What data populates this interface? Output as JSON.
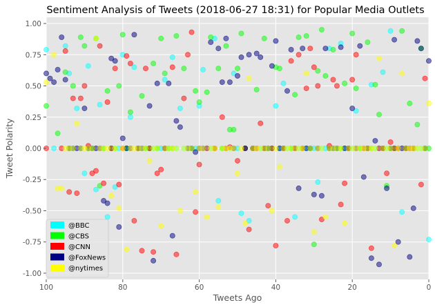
{
  "chart_data": {
    "type": "scatter",
    "title": "Sentiment Analysis of Tweets (2018-06-27 18:31) for Popular Media Outlets",
    "xlabel": "Tweets Ago",
    "ylabel": "Tweet Polarity",
    "xlim": [
      100,
      0
    ],
    "ylim": [
      -1.05,
      1.05
    ],
    "x_ticks": [
      100,
      80,
      60,
      40,
      20,
      0
    ],
    "y_ticks": [
      1.0,
      0.75,
      0.5,
      0.25,
      0.0,
      -0.25,
      -0.5,
      -0.75,
      -1.0
    ],
    "grid": true,
    "legend_position": "lower-left",
    "series": [
      {
        "name": "@BBC",
        "color": "#00ffff",
        "x": [
          100,
          98,
          95,
          94,
          93,
          92,
          91,
          90,
          89,
          88,
          87,
          86,
          85,
          84,
          83,
          82,
          81,
          80,
          79,
          78,
          77,
          76,
          75,
          74,
          73,
          72,
          71,
          70,
          69,
          68,
          67,
          66,
          65,
          64,
          63,
          62,
          61,
          60,
          59,
          58,
          57,
          56,
          55,
          54,
          53,
          52,
          51,
          50,
          49,
          48,
          47,
          46,
          45,
          44,
          43,
          42,
          41,
          40,
          39,
          38,
          37,
          36,
          35,
          34,
          33,
          32,
          31,
          30,
          29,
          28,
          27,
          26,
          25,
          24,
          23,
          22,
          21,
          20,
          19,
          18,
          17,
          16,
          15,
          14,
          13,
          12,
          11,
          10,
          9,
          8,
          7,
          6,
          5,
          4,
          3,
          2,
          1,
          0
        ],
        "y": [
          0.79,
          0.0,
          0.82,
          0.6,
          0.0,
          0.32,
          0.0,
          -0.2,
          0.66,
          0.0,
          -0.33,
          0.35,
          0.0,
          -0.55,
          0.0,
          -0.31,
          0.0,
          0.75,
          0.0,
          0.25,
          0.65,
          0.0,
          0.0,
          0.0,
          0.0,
          0.0,
          0.0,
          0.0,
          0.55,
          0.0,
          0.73,
          0.0,
          0.32,
          0.0,
          0.0,
          0.0,
          0.0,
          0.34,
          0.63,
          0.0,
          0.0,
          0.88,
          -0.42,
          0.0,
          0.0,
          0.0,
          0.6,
          0.0,
          -0.52,
          0.0,
          -0.58,
          0.0,
          0.0,
          0.0,
          0.0,
          0.0,
          0.0,
          0.34,
          0.0,
          0.52,
          0.0,
          0.0,
          -0.55,
          0.0,
          0.0,
          0.0,
          0.0,
          0.0,
          -0.27,
          0.0,
          0.0,
          0.8,
          0.0,
          0.0,
          0.84,
          0.0,
          0.0,
          0.0,
          0.3,
          0.0,
          0.0,
          0.0,
          0.51,
          0.0,
          0.0,
          0.61,
          0.0,
          0.94,
          0.0,
          0.0,
          -0.51,
          0.0,
          0.0,
          0.0,
          0.0,
          0.0,
          0.0,
          -0.73
        ]
      },
      {
        "name": "@CBS",
        "color": "#00ff00",
        "x": [
          100,
          97,
          95,
          94,
          93,
          91,
          90,
          89,
          88,
          87,
          86,
          85,
          84,
          83,
          82,
          81,
          80,
          79,
          78,
          76,
          75,
          74,
          73,
          72,
          71,
          70,
          69,
          68,
          67,
          66,
          64,
          62,
          61,
          60,
          58,
          57,
          56,
          55,
          54,
          53,
          52,
          51,
          50,
          49,
          48,
          46,
          45,
          43,
          42,
          41,
          40,
          39,
          38,
          36,
          35,
          34,
          33,
          32,
          31,
          30,
          29,
          28,
          27,
          26,
          25,
          24,
          23,
          22,
          21,
          20,
          19,
          18,
          16,
          15,
          14,
          13,
          12,
          11,
          10,
          9,
          7,
          6,
          5,
          4,
          3,
          2,
          1,
          0
        ],
        "y": [
          0.34,
          0.12,
          0.61,
          0.0,
          0.5,
          0.89,
          0.82,
          0.0,
          0.0,
          0.88,
          -0.3,
          0.0,
          0.46,
          0.0,
          0.0,
          0.5,
          0.91,
          0.0,
          0.29,
          0.0,
          0.42,
          0.0,
          0.0,
          0.68,
          0.0,
          0.88,
          0.6,
          0.0,
          0.0,
          0.9,
          0.64,
          0.0,
          0.46,
          0.37,
          0.45,
          0.89,
          0.0,
          0.64,
          0.0,
          0.82,
          0.15,
          0.15,
          0.64,
          0.92,
          0.0,
          0.0,
          0.47,
          0.88,
          0.0,
          0.0,
          0.65,
          0.64,
          0.0,
          0.0,
          0.43,
          0.89,
          0.0,
          0.9,
          0.0,
          -0.77,
          0.62,
          0.95,
          0.58,
          0.0,
          0.79,
          0.0,
          0.0,
          0.52,
          0.0,
          0.92,
          0.48,
          0.0,
          0.85,
          0.0,
          0.51,
          0.27,
          0.0,
          -0.3,
          0.0,
          0.0,
          0.94,
          0.0,
          0.36,
          0.0,
          0.19,
          0.8,
          0.0,
          0.0
        ]
      },
      {
        "name": "@CNN",
        "color": "#ff0000",
        "x": [
          100,
          96,
          95,
          94,
          93,
          92,
          91,
          90,
          89,
          88,
          87,
          86,
          85,
          84,
          83,
          82,
          81,
          80,
          79,
          78,
          77,
          76,
          75,
          74,
          73,
          72,
          71,
          70,
          69,
          67,
          66,
          64,
          63,
          62,
          61,
          60,
          58,
          56,
          54,
          53,
          52,
          50,
          48,
          47,
          46,
          45,
          44,
          43,
          42,
          41,
          40,
          38,
          37,
          36,
          35,
          34,
          33,
          32,
          31,
          30,
          29,
          28,
          26,
          25,
          24,
          23,
          22,
          21,
          20,
          19,
          17,
          16,
          15,
          13,
          12,
          11,
          10,
          9,
          8,
          6,
          5,
          4,
          2,
          1
        ],
        "y": [
          0.0,
          0.0,
          0.78,
          -0.35,
          0.4,
          -0.36,
          0.4,
          0.5,
          0.02,
          -0.2,
          -0.18,
          0.82,
          -0.28,
          0.37,
          0.0,
          0.64,
          -0.29,
          0.0,
          0.74,
          0.68,
          -0.58,
          0.0,
          -0.82,
          0.64,
          0.0,
          -0.83,
          -0.2,
          -0.17,
          0.0,
          0.65,
          -0.85,
          0.4,
          0.75,
          0.93,
          -0.51,
          -0.13,
          0.0,
          0.0,
          0.25,
          0.0,
          0.01,
          -0.1,
          0.0,
          -0.65,
          0.0,
          0.0,
          0.2,
          0.0,
          -0.46,
          0.0,
          -0.78,
          0.0,
          -0.58,
          0.7,
          0.0,
          0.75,
          0.0,
          0.48,
          0.8,
          0.65,
          0.5,
          -0.57,
          0.02,
          0.55,
          0.5,
          -0.45,
          -0.28,
          0.0,
          0.55,
          0.75,
          0.0,
          0.0,
          -0.8,
          0.0,
          0.0,
          -0.2,
          0.05,
          0.0,
          0.0,
          0.0,
          0.0,
          0.0,
          -0.29,
          0.56
        ]
      },
      {
        "name": "@FoxNews",
        "color": "#000080",
        "x": [
          100,
          99,
          98,
          97,
          96,
          95,
          94,
          93,
          92,
          91,
          90,
          89,
          88,
          87,
          86,
          85,
          84,
          83,
          82,
          81,
          80,
          79,
          78,
          77,
          76,
          75,
          73,
          72,
          71,
          69,
          68,
          67,
          66,
          65,
          63,
          62,
          61,
          60,
          59,
          57,
          55,
          54,
          53,
          52,
          51,
          50,
          49,
          48,
          47,
          46,
          45,
          44,
          43,
          42,
          41,
          40,
          39,
          38,
          37,
          36,
          35,
          34,
          33,
          32,
          31,
          30,
          29,
          28,
          27,
          26,
          25,
          24,
          23,
          22,
          21,
          20,
          19,
          18,
          17,
          16,
          15,
          14,
          13,
          12,
          11,
          10,
          9,
          8,
          7,
          6,
          5,
          4,
          3,
          2,
          1,
          0
        ],
        "y": [
          0.6,
          0.56,
          0.53,
          0.63,
          0.89,
          0.55,
          0.0,
          0.0,
          0.0,
          0.0,
          0.32,
          0.0,
          0.0,
          0.0,
          0.0,
          -0.42,
          -0.44,
          0.72,
          0.7,
          -0.63,
          0.08,
          0.0,
          0.0,
          0.91,
          0.0,
          0.0,
          0.34,
          -0.9,
          0.52,
          0.0,
          0.52,
          -0.7,
          0.22,
          0.17,
          0.0,
          0.0,
          -0.03,
          0.0,
          0.0,
          0.85,
          0.8,
          0.53,
          0.88,
          0.53,
          0.0,
          0.58,
          0.73,
          0.0,
          0.75,
          0.0,
          0.76,
          0.73,
          0.0,
          0.0,
          0.66,
          0.86,
          0.0,
          0.0,
          0.46,
          0.79,
          0.0,
          -0.32,
          0.8,
          0.0,
          0.0,
          -0.37,
          0.0,
          -0.38,
          0.8,
          0.0,
          0.0,
          0.0,
          0.81,
          0.0,
          0.0,
          0.32,
          0.0,
          0.82,
          -0.23,
          0.0,
          -0.88,
          0.06,
          -0.93,
          0.0,
          -0.32,
          0.0,
          0.87,
          -0.75,
          0.0,
          0.0,
          -0.87,
          -0.48,
          0.86,
          0.8,
          0.0,
          0.7
        ]
      },
      {
        "name": "@nytimes",
        "color": "#ffff00",
        "x": [
          100,
          98,
          97,
          96,
          95,
          94,
          93,
          92,
          91,
          90,
          89,
          88,
          87,
          86,
          85,
          84,
          83,
          82,
          81,
          80,
          79,
          78,
          77,
          76,
          75,
          74,
          73,
          72,
          71,
          70,
          69,
          68,
          67,
          66,
          65,
          64,
          63,
          62,
          61,
          60,
          59,
          58,
          57,
          56,
          55,
          54,
          53,
          52,
          51,
          50,
          49,
          48,
          47,
          46,
          45,
          44,
          43,
          42,
          41,
          40,
          39,
          38,
          37,
          36,
          35,
          34,
          33,
          32,
          31,
          30,
          29,
          28,
          27,
          26,
          25,
          24,
          23,
          22,
          21,
          20,
          19,
          18,
          17,
          16,
          15,
          14,
          13,
          12,
          11,
          10,
          9,
          8,
          7,
          6,
          5,
          4,
          3,
          2,
          1,
          0
        ],
        "y": [
          0.53,
          0.75,
          -0.32,
          -0.32,
          0.0,
          0.0,
          0.0,
          0.2,
          0.0,
          0.0,
          0.0,
          0.0,
          0.88,
          0.0,
          0.0,
          0.0,
          -0.38,
          0.0,
          -0.48,
          0.0,
          -0.81,
          0.0,
          0.0,
          0.0,
          0.0,
          0.0,
          -0.1,
          0.0,
          0.0,
          -0.62,
          0.0,
          0.0,
          0.0,
          0.0,
          -0.5,
          0.0,
          0.0,
          0.0,
          -0.35,
          0.0,
          0.0,
          -0.55,
          0.0,
          0.0,
          -0.47,
          0.0,
          0.0,
          0.0,
          0.0,
          -0.2,
          0.0,
          -0.6,
          0.56,
          0.0,
          0.0,
          0.0,
          0.0,
          0.0,
          -0.5,
          0.0,
          -0.15,
          0.0,
          0.0,
          0.0,
          0.0,
          0.0,
          0.0,
          0.6,
          0.0,
          -0.67,
          0.0,
          0.0,
          -0.55,
          0.0,
          0.0,
          0.0,
          0.0,
          -0.6,
          0.0,
          0.0,
          0.0,
          0.0,
          0.0,
          0.0,
          0.0,
          0.0,
          0.72,
          0.0,
          0.0,
          0.0,
          -0.78,
          0.0,
          0.6,
          0.0,
          0.0,
          0.0,
          0.0,
          0.0,
          0.0,
          0.36
        ]
      }
    ],
    "legend": [
      {
        "label": "@BBC",
        "color": "#00ffff"
      },
      {
        "label": "@CBS",
        "color": "#00ff00"
      },
      {
        "label": "@CNN",
        "color": "#ff0000"
      },
      {
        "label": "@FoxNews",
        "color": "#000080"
      },
      {
        "label": "@nytimes",
        "color": "#ffff00"
      }
    ]
  }
}
